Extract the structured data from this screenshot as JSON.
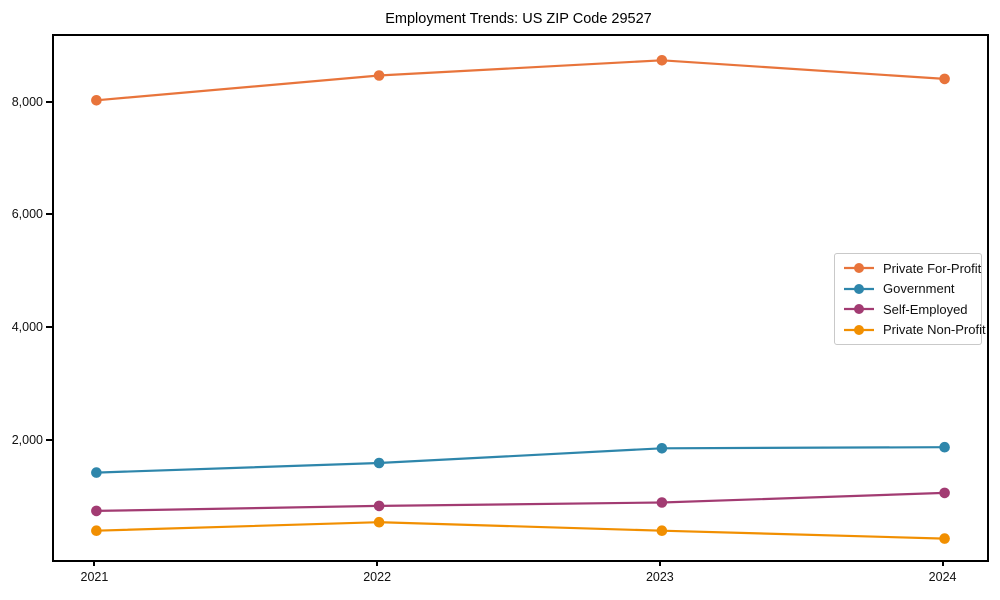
{
  "chart_data": {
    "type": "line",
    "title": "Employment Trends: US ZIP Code 29527",
    "xlabel": "",
    "ylabel": "",
    "grid": false,
    "background_color": "#ffffff",
    "axis_color": "#000000",
    "legend_position": "center-right",
    "x": [
      2021,
      2022,
      2023,
      2024
    ],
    "xlim": [
      2020.85,
      2024.15
    ],
    "ylim": [
      -90,
      9200
    ],
    "x_ticks": {
      "values": [
        2021,
        2022,
        2023,
        2024
      ],
      "labels": [
        "2021",
        "2022",
        "2023",
        "2024"
      ]
    },
    "y_ticks": {
      "values": [
        2000,
        4000,
        6000,
        8000
      ],
      "labels": [
        "2,000",
        "4,000",
        "6,000",
        "8,000"
      ]
    },
    "series": [
      {
        "name": "Private For-Profit",
        "color": "#E8743B",
        "values": [
          8060,
          8500,
          8770,
          8440
        ]
      },
      {
        "name": "Government",
        "color": "#2E86AB",
        "values": [
          1460,
          1630,
          1890,
          1910
        ]
      },
      {
        "name": "Self-Employed",
        "color": "#A23B72",
        "values": [
          780,
          870,
          930,
          1100
        ]
      },
      {
        "name": "Private Non-Profit",
        "color": "#F18F01",
        "values": [
          430,
          580,
          430,
          290
        ]
      }
    ]
  }
}
